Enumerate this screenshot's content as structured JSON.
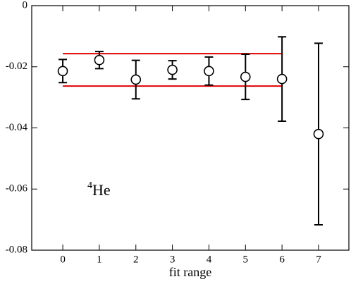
{
  "chart_data": {
    "type": "scatter",
    "x_label": "fit range",
    "x": [
      0,
      1,
      2,
      3,
      4,
      5,
      6,
      7
    ],
    "series": [
      {
        "color": "#000000",
        "values": [
          -0.0214,
          -0.0178,
          -0.0242,
          -0.021,
          -0.0214,
          -0.0233,
          -0.024,
          -0.042
        ],
        "errors": [
          0.0038,
          0.0028,
          0.0063,
          0.003,
          0.0046,
          0.0074,
          0.0138,
          0.0297
        ]
      }
    ],
    "hlines": [
      {
        "value": -0.0157,
        "xmin": 0,
        "xmax": 6,
        "color": "#e00000"
      },
      {
        "value": -0.0263,
        "xmin": 0,
        "xmax": 6,
        "color": "#e00000"
      }
    ],
    "annotation": {
      "superscript": "4",
      "text": "He"
    },
    "xlim": [
      -0.85,
      7.83
    ],
    "ylim": [
      -0.08,
      0
    ],
    "xticks": [
      0,
      1,
      2,
      3,
      4,
      5,
      6,
      7
    ],
    "yticks": [
      0,
      -0.02,
      -0.04,
      -0.06,
      -0.08
    ]
  }
}
